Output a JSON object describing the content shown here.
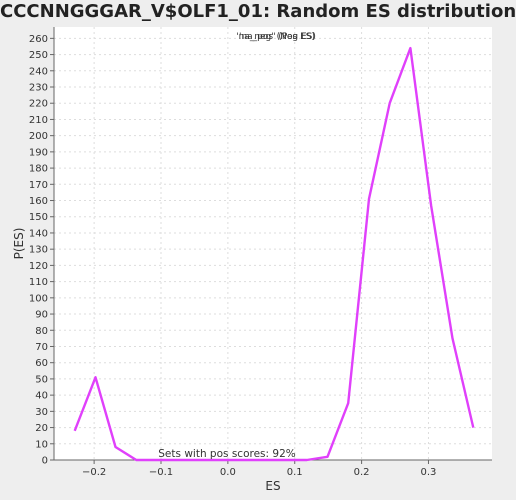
{
  "chart_data": {
    "type": "line",
    "title": "CCCNNGGGAR_V$OLF1_01: Random ES distribution",
    "xlabel": "ES",
    "ylabel": "P(ES)",
    "xlim": [
      -0.26,
      0.395
    ],
    "ylim": [
      0,
      267
    ],
    "x_ticks": [
      -0.2,
      -0.1,
      0.0,
      0.1,
      0.2,
      0.3
    ],
    "x_tick_labels": [
      "−0.2",
      "−0.1",
      "0.0",
      "0.1",
      "0.2",
      "0.3"
    ],
    "y_ticks": [
      0,
      10,
      20,
      30,
      40,
      50,
      60,
      70,
      80,
      90,
      100,
      110,
      120,
      130,
      140,
      150,
      160,
      170,
      180,
      190,
      200,
      210,
      220,
      230,
      240,
      250,
      260
    ],
    "grid": true,
    "legend": {
      "position": "top-center",
      "entries": [
        "'na_neg' (Neg ES)",
        "'na_pos' (Pos ES)"
      ]
    },
    "annotation": "Sets with pos scores: 92%",
    "colors": {
      "line": "#e040fb",
      "legend_text": "#7a22a8",
      "plot_bg": "#ffffff",
      "grid": "#dddddd"
    },
    "series": [
      {
        "values_xy": [
          [
            -0.229,
            18
          ],
          [
            -0.198,
            51
          ],
          [
            -0.168,
            8
          ],
          [
            -0.137,
            0
          ],
          [
            -0.106,
            0
          ],
          [
            -0.075,
            0
          ],
          [
            -0.044,
            0
          ],
          [
            -0.014,
            0
          ],
          [
            0.017,
            0
          ],
          [
            0.048,
            0
          ],
          [
            0.087,
            0
          ],
          [
            0.118,
            0
          ],
          [
            0.149,
            2
          ],
          [
            0.18,
            35
          ],
          [
            0.211,
            161
          ],
          [
            0.242,
            220
          ],
          [
            0.273,
            254
          ],
          [
            0.304,
            157
          ],
          [
            0.336,
            75
          ],
          [
            0.367,
            20
          ]
        ]
      }
    ]
  }
}
